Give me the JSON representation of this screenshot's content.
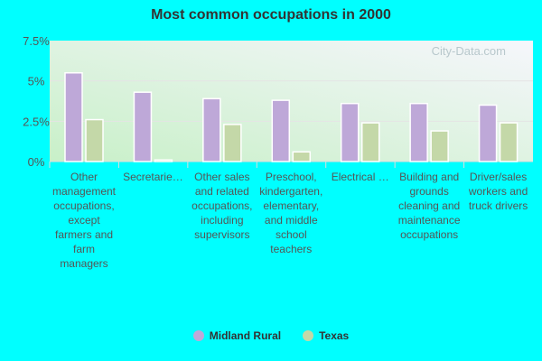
{
  "chart_data": {
    "type": "bar",
    "title": "Most common occupations in 2000",
    "categories": [
      "Other management occupations, except farmers and farm managers",
      "Secretarie…",
      "Other sales and related occupations, including supervisors",
      "Preschool, kindergarten, elementary, and middle school teachers",
      "Electrical …",
      "Building and grounds cleaning and maintenance occupations",
      "Driver/sales workers and truck drivers"
    ],
    "series": [
      {
        "name": "Midland Rural",
        "color": "#bea8d8",
        "values": [
          5.5,
          4.3,
          3.9,
          3.8,
          3.6,
          3.6,
          3.5
        ]
      },
      {
        "name": "Texas",
        "color": "#c4d8a8",
        "values": [
          2.6,
          0.1,
          2.3,
          0.6,
          2.4,
          1.9,
          2.4
        ]
      }
    ],
    "yticks": [
      "0%",
      "2.5%",
      "5%",
      "7.5%"
    ],
    "ylim": [
      0,
      7.5
    ],
    "grid": true,
    "legend": "bottom",
    "watermark": "City-Data.com"
  }
}
